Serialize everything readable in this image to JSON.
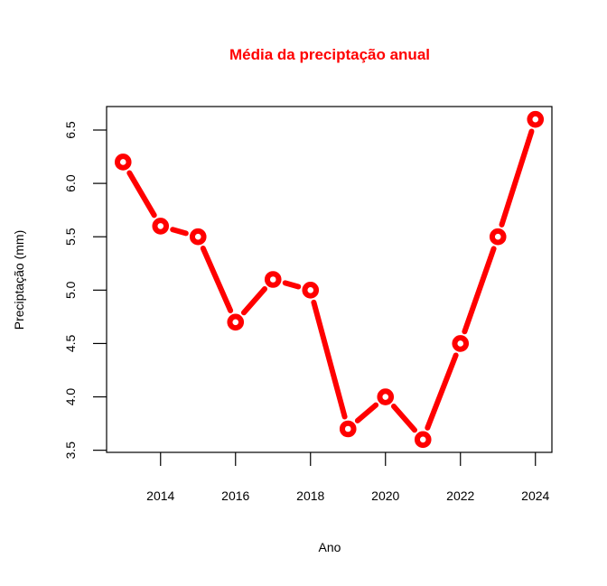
{
  "chart_data": {
    "type": "line",
    "title": "Média da preciptação anual",
    "xlabel": "Ano",
    "ylabel": "Preciptação (mm)",
    "x": [
      2013,
      2014,
      2015,
      2016,
      2017,
      2018,
      2019,
      2020,
      2021,
      2022,
      2023,
      2024
    ],
    "series": [
      {
        "values": [
          6.2,
          5.6,
          5.5,
          4.7,
          5.1,
          5.0,
          3.7,
          4.0,
          3.6,
          4.5,
          5.5,
          6.6
        ]
      }
    ],
    "x_ticks": [
      "2014",
      "2016",
      "2018",
      "2020",
      "2022",
      "2024"
    ],
    "y_ticks": [
      "3.5",
      "4.0",
      "4.5",
      "5.0",
      "5.5",
      "6.0",
      "6.5"
    ],
    "xlim": [
      2012.56,
      2024.44
    ],
    "ylim": [
      3.48,
      6.72
    ],
    "colors": {
      "series": "#ff0000",
      "title": "#ff0000"
    },
    "grid": false,
    "legend": "none"
  }
}
